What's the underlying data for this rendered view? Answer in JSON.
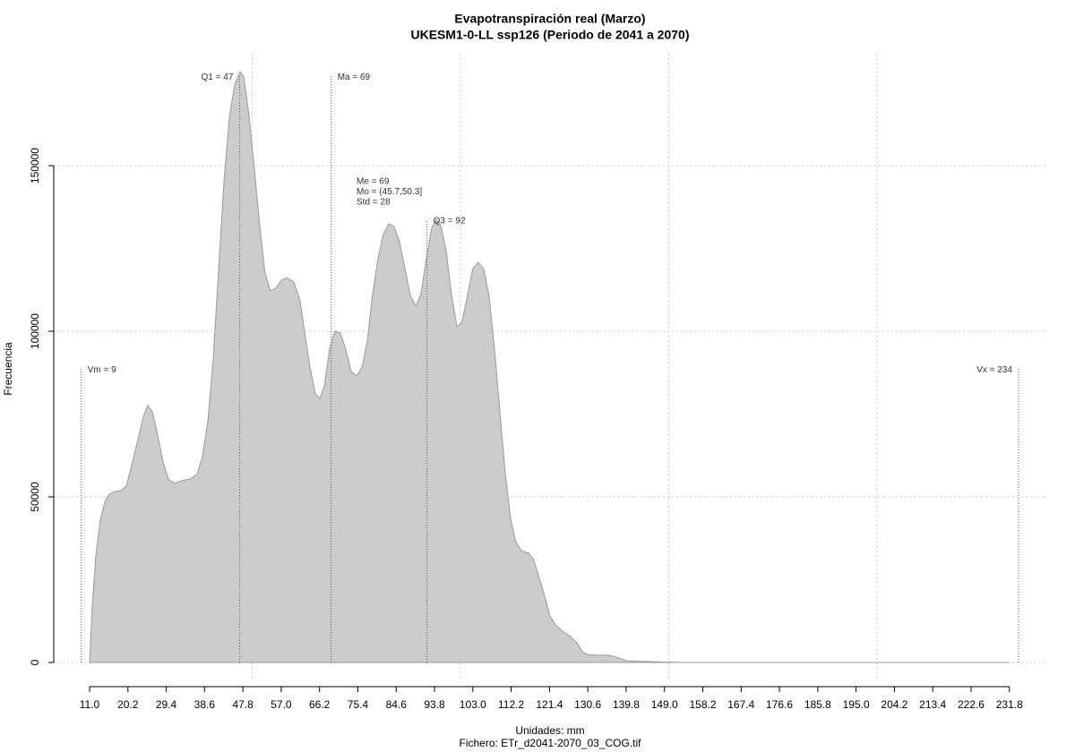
{
  "chart_data": {
    "type": "area",
    "title": "Evapotranspiración real (Marzo)",
    "subtitle": "UKESM1-0-LL ssp126 (Periodo de 2041 a 2070)",
    "x_label": "Unidades: mm",
    "caption": "Fichero: ETr_d2041-2070_03_COG.tif",
    "y_label": "Frecuencia",
    "color": "#cccccc",
    "line_color": "#999999",
    "grid": true,
    "xlim": [
      2.4,
      241.1
    ],
    "ylim": [
      -5400,
      183800
    ],
    "yticks": [
      0,
      50000,
      100000,
      150000
    ],
    "xticks": [
      {
        "value": 11,
        "label": "11.0"
      },
      20.2,
      29.4,
      38.6,
      47.8,
      {
        "value": 57,
        "label": "57.0"
      },
      66.2,
      75.4,
      84.6,
      93.8,
      {
        "value": 103,
        "label": "103.0"
      },
      112.2,
      121.4,
      130.6,
      139.8,
      {
        "value": 149,
        "label": "149.0"
      },
      158.2,
      167.4,
      176.6,
      185.8,
      {
        "value": 195,
        "label": "195.0"
      },
      204.2,
      213.4,
      222.6,
      231.8
    ],
    "xgrid": [
      50,
      100,
      150,
      200
    ],
    "x": [
      11.0,
      11.6,
      12.5,
      13.6,
      14.7,
      15.7,
      17.0,
      18.5,
      19.8,
      21.1,
      22.4,
      23.9,
      25.0,
      26.1,
      27.3,
      28.6,
      29.9,
      31.4,
      33.1,
      35.1,
      36.8,
      38.1,
      39.4,
      40.7,
      42.0,
      43.3,
      44.6,
      45.8,
      47.1,
      48.0,
      49.3,
      50.6,
      51.8,
      53.1,
      54.4,
      55.7,
      57.0,
      58.3,
      60.0,
      61.5,
      62.6,
      63.9,
      65.2,
      66.3,
      67.4,
      68.6,
      69.9,
      71.2,
      72.5,
      73.8,
      75.1,
      76.4,
      77.7,
      78.9,
      80.2,
      81.5,
      82.8,
      84.1,
      85.4,
      86.7,
      88.0,
      89.3,
      90.6,
      91.8,
      93.1,
      94.2,
      95.3,
      96.6,
      97.9,
      99.2,
      100.4,
      101.7,
      103.0,
      104.3,
      105.6,
      106.9,
      108.2,
      109.5,
      110.8,
      112.1,
      113.3,
      114.6,
      116.4,
      117.6,
      118.9,
      120.2,
      121.5,
      122.8,
      124.5,
      126.2,
      128.0,
      129.3,
      130.5,
      132.7,
      135.7,
      137.9,
      140.0,
      144.3,
      152.9,
      183.0,
      231.8
    ],
    "values": [
      0,
      16200,
      32400,
      43200,
      48600,
      50800,
      51600,
      51900,
      53200,
      59500,
      66200,
      74300,
      77600,
      75700,
      68900,
      60800,
      55400,
      54100,
      54900,
      55400,
      56800,
      62200,
      73000,
      91900,
      118900,
      145900,
      164900,
      174300,
      178400,
      177000,
      164900,
      148600,
      132400,
      117600,
      112200,
      113000,
      115400,
      116200,
      114900,
      109500,
      100000,
      89200,
      81100,
      79700,
      83800,
      94600,
      100000,
      99500,
      94600,
      87800,
      86500,
      89200,
      97300,
      110800,
      121600,
      129200,
      132400,
      131600,
      127000,
      118900,
      110800,
      107600,
      111400,
      121600,
      131100,
      133800,
      131900,
      124300,
      110800,
      101400,
      102700,
      110800,
      118900,
      120800,
      118900,
      110800,
      94600,
      75700,
      56800,
      43200,
      36500,
      33800,
      33000,
      31100,
      25700,
      20300,
      14100,
      11400,
      9500,
      8100,
      5900,
      3200,
      2400,
      2200,
      2200,
      1400,
      500,
      300,
      0,
      0,
      0
    ],
    "annotations": [
      {
        "label": "Vm = 9",
        "x": 9,
        "y": 88600
      },
      {
        "label": "Q1 = 47",
        "x": 47,
        "y": 177000
      },
      {
        "label": "Ma = 69",
        "x": 69,
        "y": 177000
      },
      {
        "label": "Q3 = 92",
        "x": 92,
        "y": 133500
      },
      {
        "label": "Vx = 234",
        "x": 234,
        "y": 88600
      }
    ],
    "stats": [
      "Me = 69",
      "Mo = (45.7,50.3]",
      "Std = 28"
    ]
  }
}
